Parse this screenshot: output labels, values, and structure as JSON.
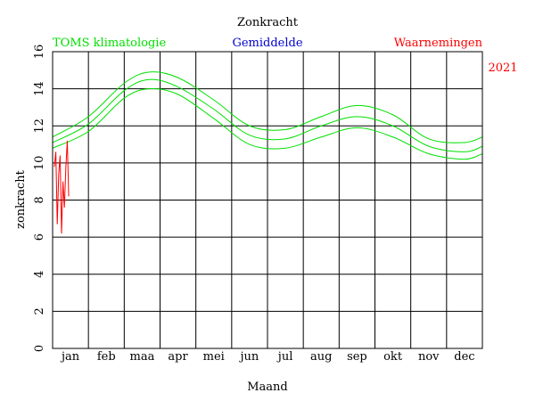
{
  "chart_data": {
    "type": "line",
    "title": "Zonkracht",
    "xlabel": "Maand",
    "ylabel": "zonkracht",
    "ylim": [
      0,
      16
    ],
    "yticks": [
      0,
      2,
      4,
      6,
      8,
      10,
      12,
      14,
      16
    ],
    "months": [
      "jan",
      "feb",
      "maa",
      "apr",
      "mei",
      "jun",
      "jul",
      "aug",
      "sep",
      "okt",
      "nov",
      "dec"
    ],
    "grid": true,
    "legend": {
      "left": "TOMS klimatologie",
      "center": "Gemiddelde",
      "right": "Waarnemingen",
      "year": "2021"
    },
    "colors": {
      "climatology": "#00e000",
      "observations": "#ff0000",
      "gemiddelde": "#0000d0",
      "axis": "#000000"
    },
    "series": [
      {
        "role": "climatology-upper",
        "x": [
          0,
          1,
          2,
          2.7,
          3.5,
          4.5,
          5.5,
          6.5,
          7.5,
          8.5,
          9.5,
          10.5,
          11.5,
          12
        ],
        "y": [
          11.4,
          12.5,
          14.3,
          14.9,
          14.6,
          13.4,
          12.0,
          11.8,
          12.5,
          13.1,
          12.6,
          11.3,
          11.1,
          11.4
        ]
      },
      {
        "role": "climatology-middle",
        "x": [
          0,
          1,
          2,
          2.7,
          3.5,
          4.5,
          5.5,
          6.5,
          7.5,
          8.5,
          9.5,
          10.5,
          11.5,
          12
        ],
        "y": [
          11.1,
          12.1,
          13.9,
          14.5,
          14.1,
          12.9,
          11.5,
          11.3,
          12.0,
          12.5,
          12.0,
          10.9,
          10.6,
          10.9
        ]
      },
      {
        "role": "climatology-lower",
        "x": [
          0,
          1,
          2,
          2.7,
          3.5,
          4.5,
          5.5,
          6.5,
          7.5,
          8.5,
          9.5,
          10.5,
          11.5,
          12
        ],
        "y": [
          10.8,
          11.7,
          13.5,
          14.0,
          13.7,
          12.4,
          11.0,
          10.8,
          11.4,
          11.9,
          11.4,
          10.5,
          10.2,
          10.5
        ]
      },
      {
        "role": "observations",
        "x": [
          0.05,
          0.09,
          0.13,
          0.17,
          0.21,
          0.25,
          0.29,
          0.33,
          0.37,
          0.41,
          0.45
        ],
        "y": [
          9.8,
          10.6,
          6.7,
          9.4,
          10.4,
          6.2,
          9.0,
          7.6,
          9.8,
          11.2,
          8.2
        ]
      }
    ]
  }
}
